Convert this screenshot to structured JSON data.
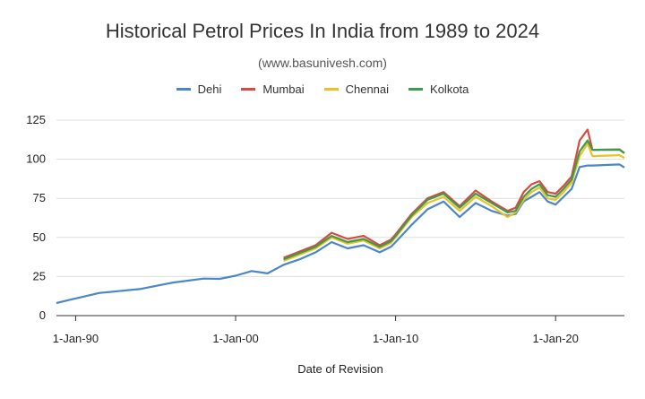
{
  "chart_data": {
    "type": "line",
    "title": "Historical Petrol Prices In India from 1989 to 2024",
    "subtitle": "(www.basunivesh.com)",
    "xlabel": "Date of Revision",
    "ylabel": "",
    "xlim": [
      1988.8,
      2024.3
    ],
    "ylim": [
      0,
      125
    ],
    "y_ticks": [
      0,
      25,
      50,
      75,
      100,
      125
    ],
    "x_ticks": [
      {
        "value": 1990,
        "label": "1-Jan-90"
      },
      {
        "value": 2000,
        "label": "1-Jan-00"
      },
      {
        "value": 2010,
        "label": "1-Jan-10"
      },
      {
        "value": 2020,
        "label": "1-Jan-20"
      }
    ],
    "grid": "horizontal",
    "legend_position": "top",
    "series": [
      {
        "name": "Dehi",
        "color": "#4a86c8",
        "x": [
          1988.8,
          1989.5,
          1991.5,
          1994,
          1996,
          1998,
          1999,
          2000,
          2001,
          2002,
          2003,
          2004,
          2005,
          2006,
          2007,
          2008,
          2009,
          2009.7,
          2010,
          2011,
          2012,
          2013,
          2014,
          2015,
          2016,
          2017,
          2017.5,
          2018,
          2018.5,
          2019,
          2019.5,
          2020,
          2020.5,
          2021,
          2021.5,
          2022,
          2022.3,
          2024,
          2024.3
        ],
        "y": [
          8,
          9.8,
          14.5,
          17,
          21,
          23.7,
          23.5,
          25.5,
          28.5,
          27,
          32.5,
          36,
          40.5,
          47,
          43,
          45,
          40.5,
          44,
          47,
          58,
          68,
          73,
          63,
          72,
          67,
          64,
          65,
          73,
          76,
          79,
          73,
          71,
          76,
          81,
          95,
          96,
          96,
          96.7,
          94.7
        ]
      },
      {
        "name": "Mumbai",
        "color": "#d94a3f",
        "x": [
          2003,
          2004,
          2005,
          2006,
          2007,
          2008,
          2009,
          2009.7,
          2010,
          2011,
          2012,
          2013,
          2014,
          2015,
          2016,
          2017,
          2017.5,
          2018,
          2018.5,
          2019,
          2019.5,
          2020,
          2020.5,
          2021,
          2021.5,
          2022,
          2022.3,
          2024,
          2024.3
        ],
        "y": [
          37,
          41,
          45,
          53,
          49,
          51,
          45,
          48.5,
          52,
          65,
          75,
          79,
          70,
          80,
          73,
          67,
          69,
          79,
          84,
          86,
          79,
          78,
          83,
          89,
          112,
          119,
          106,
          106.3,
          104
        ]
      },
      {
        "name": "Chennai",
        "color": "#e8c227",
        "x": [
          2003,
          2004,
          2005,
          2006,
          2007,
          2008,
          2009,
          2009.7,
          2010,
          2011,
          2012,
          2013,
          2014,
          2015,
          2016,
          2017,
          2017.5,
          2018,
          2018.5,
          2019,
          2019.5,
          2020,
          2020.5,
          2021,
          2021.5,
          2022,
          2022.3,
          2024,
          2024.3
        ],
        "y": [
          35,
          39,
          43,
          50,
          46,
          48,
          43,
          46.5,
          50,
          63,
          72,
          76,
          67,
          76,
          70,
          63,
          66,
          74,
          79,
          82,
          75,
          74,
          79,
          85,
          102,
          110,
          102,
          102.6,
          100.8
        ]
      },
      {
        "name": "Kolkota",
        "color": "#3e9a4e",
        "x": [
          2003,
          2004,
          2005,
          2006,
          2007,
          2008,
          2009,
          2009.7,
          2010,
          2011,
          2012,
          2013,
          2014,
          2015,
          2016,
          2017,
          2017.5,
          2018,
          2018.5,
          2019,
          2019.5,
          2020,
          2020.5,
          2021,
          2021.5,
          2022,
          2022.3,
          2024,
          2024.3
        ],
        "y": [
          36,
          40,
          44,
          51,
          47,
          49,
          44,
          47.5,
          51,
          64,
          74,
          78,
          69,
          78,
          72,
          66,
          67,
          76,
          81,
          84,
          77,
          76,
          81,
          87,
          105,
          112,
          106,
          106,
          103.9
        ]
      }
    ]
  }
}
